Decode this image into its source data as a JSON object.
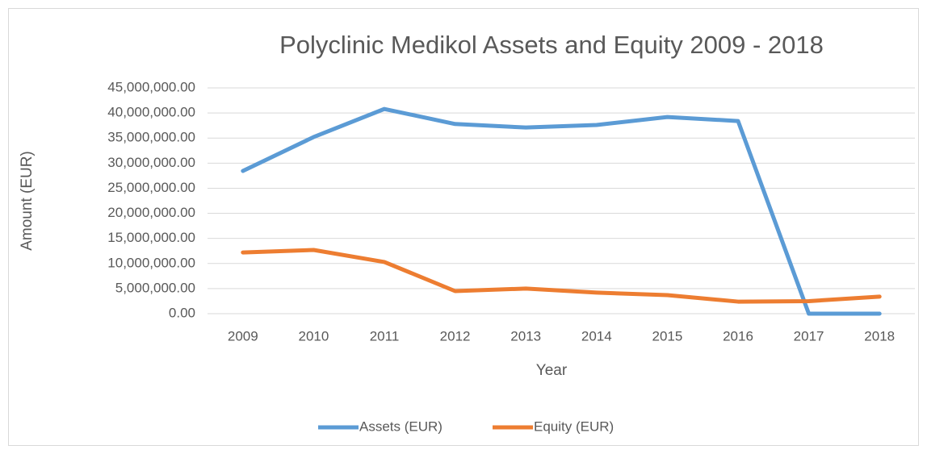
{
  "chart_data": {
    "type": "line",
    "title": "Polyclinic Medikol Assets and Equity 2009 - 2018",
    "x_label": "Year",
    "y_label": "Amount (EUR)",
    "categories": [
      "2009",
      "2010",
      "2011",
      "2012",
      "2013",
      "2014",
      "2015",
      "2016",
      "2017",
      "2018"
    ],
    "series": [
      {
        "name": "Assets (EUR)",
        "color": "#5b9bd5",
        "values": [
          28450000,
          35200000,
          40800000,
          37800000,
          37100000,
          37600000,
          39200000,
          38400000,
          0,
          0
        ]
      },
      {
        "name": "Equity (EUR)",
        "color": "#ed7d31",
        "values": [
          12200000,
          12700000,
          10300000,
          4500000,
          5000000,
          4200000,
          3700000,
          2400000,
          2500000,
          3400000
        ]
      }
    ],
    "ylim": [
      0,
      45000000
    ],
    "yticks": [
      {
        "value": 0,
        "label": "0.00"
      },
      {
        "value": 5000000,
        "label": "5,000,000.00"
      },
      {
        "value": 10000000,
        "label": "10,000,000.00"
      },
      {
        "value": 15000000,
        "label": "15,000,000.00"
      },
      {
        "value": 20000000,
        "label": "20,000,000.00"
      },
      {
        "value": 25000000,
        "label": "25,000,000.00"
      },
      {
        "value": 30000000,
        "label": "30,000,000.00"
      },
      {
        "value": 35000000,
        "label": "35,000,000.00"
      },
      {
        "value": 40000000,
        "label": "40,000,000.00"
      },
      {
        "value": 45000000,
        "label": "45,000,000.00"
      }
    ],
    "grid": true,
    "legend": "bottom"
  }
}
